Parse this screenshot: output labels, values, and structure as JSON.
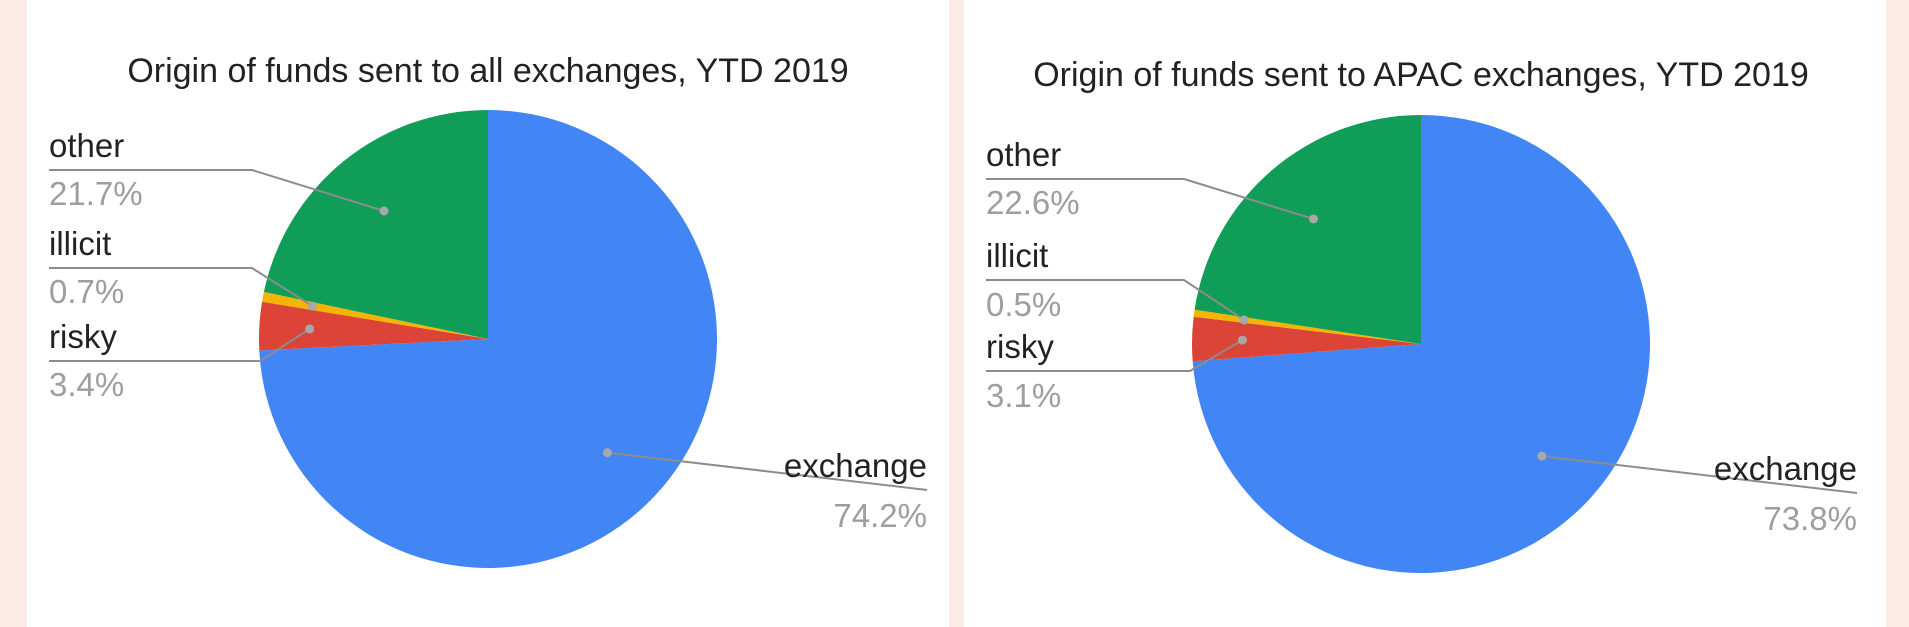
{
  "chart_data": [
    {
      "type": "pie",
      "title": "Origin of funds sent to all exchanges, YTD 2019",
      "start_angle_deg": 0,
      "direction": "clockwise",
      "slices": [
        {
          "label": "exchange",
          "value": 74.2,
          "display": "74.2%",
          "color": "#4285f4"
        },
        {
          "label": "risky",
          "value": 3.4,
          "display": "3.4%",
          "color": "#db4437"
        },
        {
          "label": "illicit",
          "value": 0.7,
          "display": "0.7%",
          "color": "#f4b400"
        },
        {
          "label": "other",
          "value": 21.7,
          "display": "21.7%",
          "color": "#0f9d58"
        }
      ]
    },
    {
      "type": "pie",
      "title": "Origin of funds sent to APAC exchanges, YTD 2019",
      "start_angle_deg": 0,
      "direction": "clockwise",
      "slices": [
        {
          "label": "exchange",
          "value": 73.8,
          "display": "73.8%",
          "color": "#4285f4"
        },
        {
          "label": "risky",
          "value": 3.1,
          "display": "3.1%",
          "color": "#db4437"
        },
        {
          "label": "illicit",
          "value": 0.5,
          "display": "0.5%",
          "color": "#f4b400"
        },
        {
          "label": "other",
          "value": 22.6,
          "display": "22.6%",
          "color": "#0f9d58"
        }
      ]
    }
  ]
}
